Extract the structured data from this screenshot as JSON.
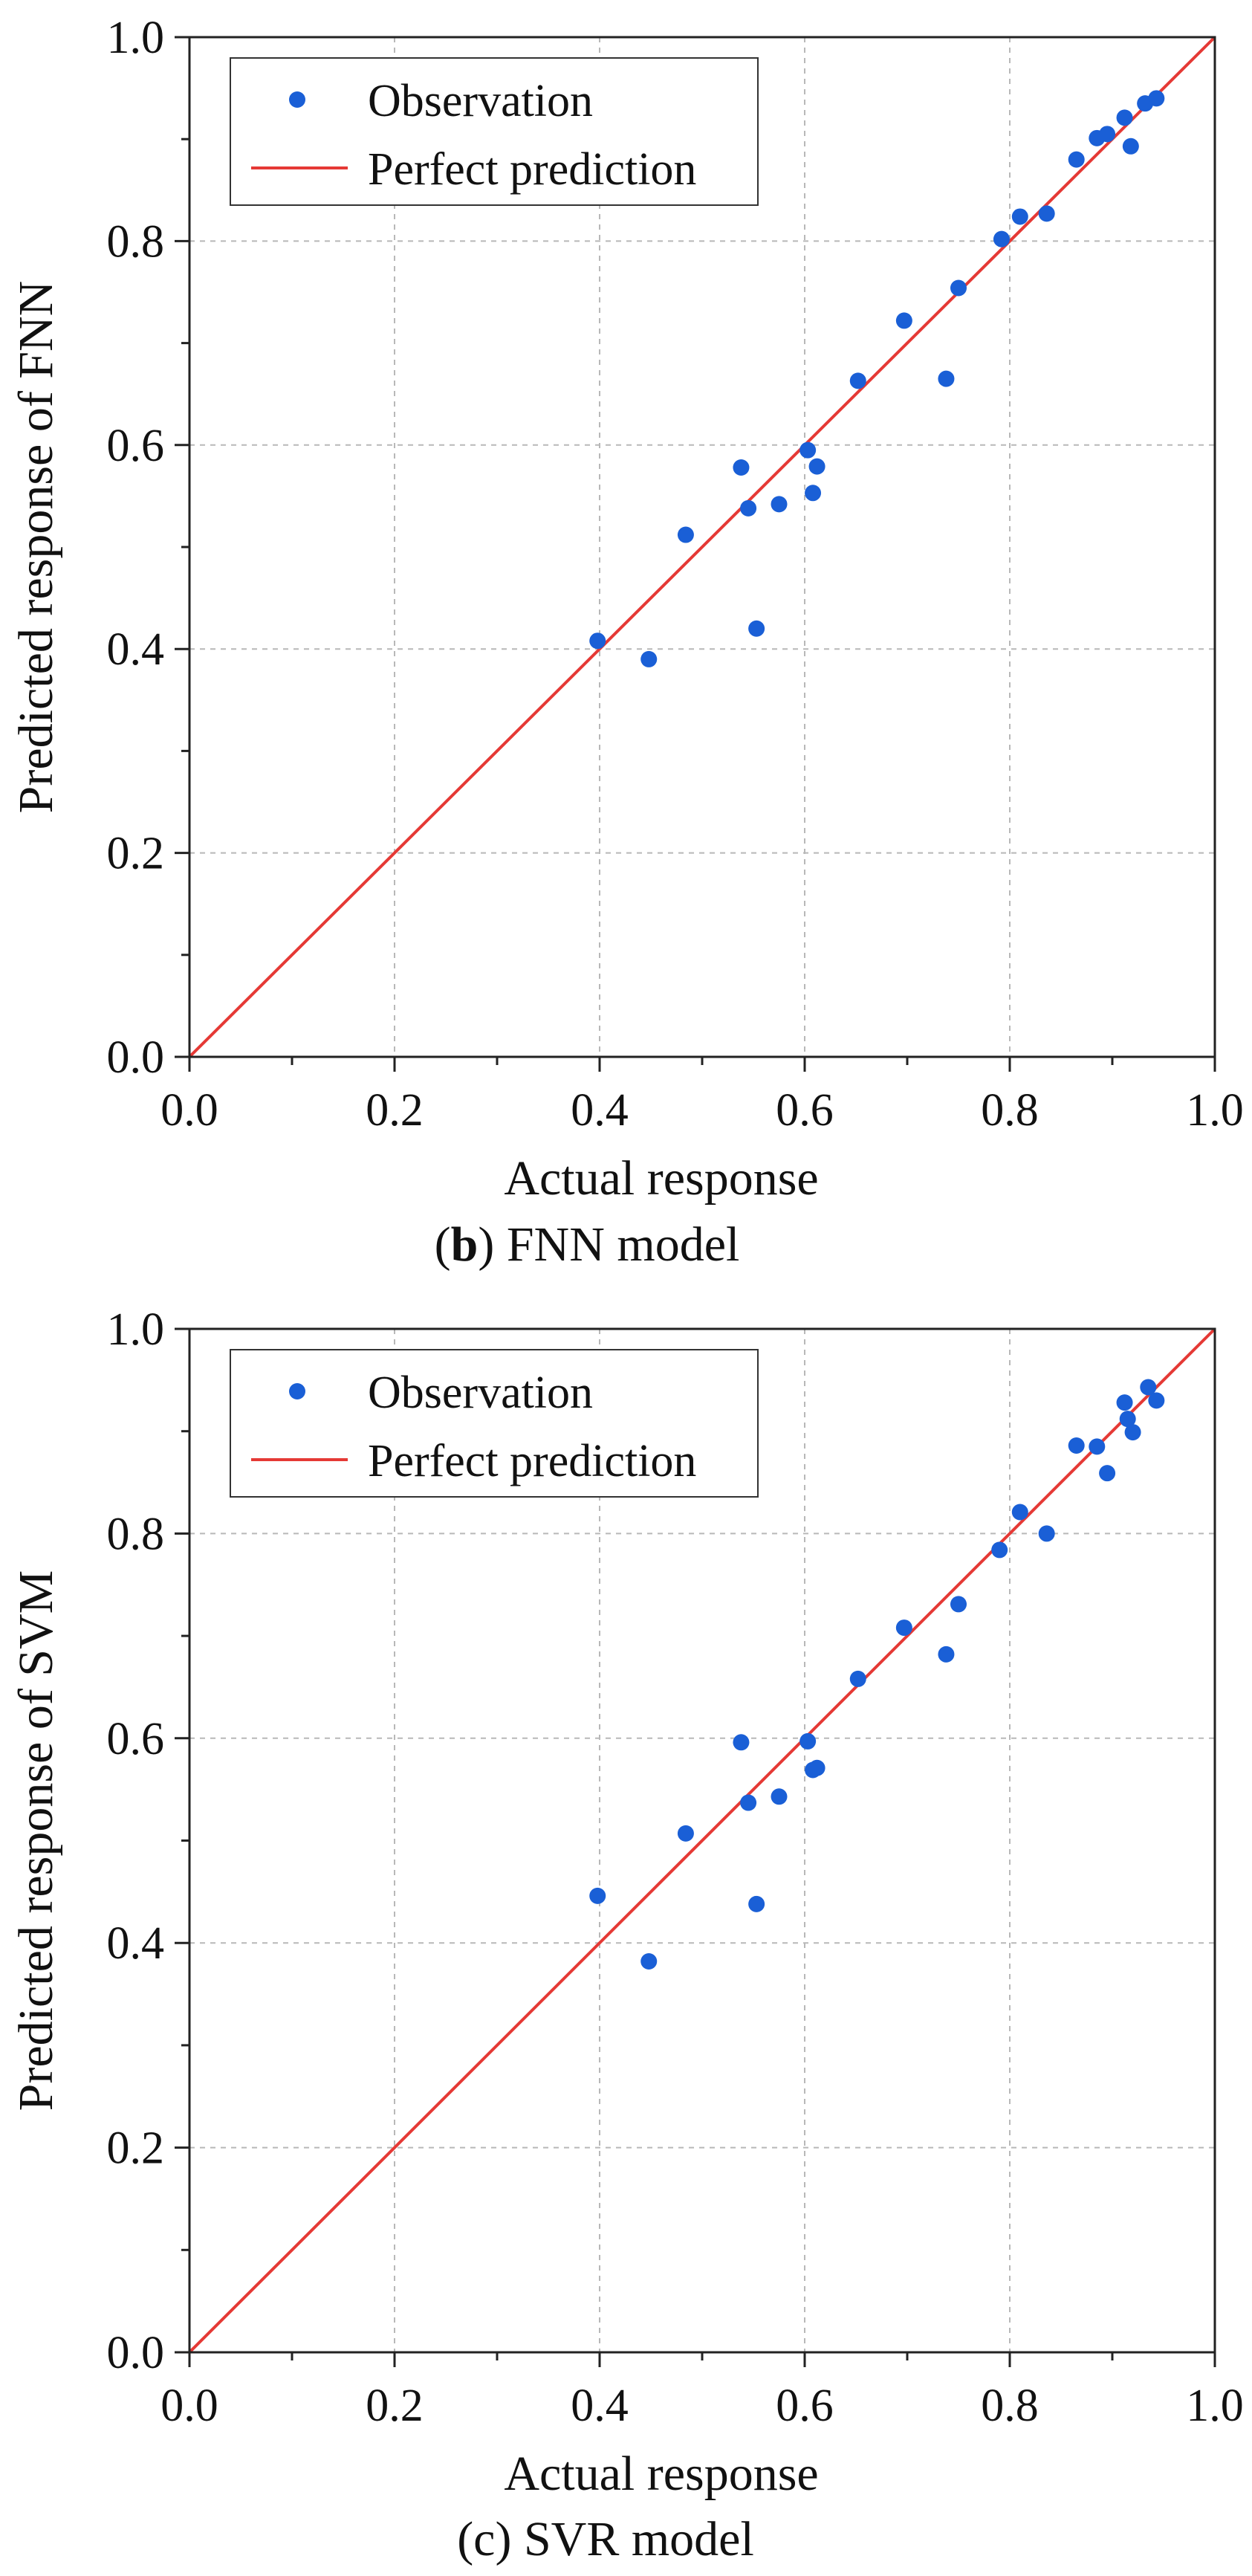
{
  "colors": {
    "observation": "#1a5fd6",
    "perfect_line": "#e53935",
    "grid": "#b8b8b8",
    "axis": "#222222",
    "text": "#111111"
  },
  "chart_data": [
    {
      "type": "scatter",
      "id": "fnn",
      "title": "",
      "caption": {
        "open": "(",
        "letter": "b",
        "close": ") FNN model"
      },
      "xlabel": "Actual response",
      "ylabel": "Predicted response of FNN",
      "xlim": [
        0,
        1
      ],
      "ylim": [
        0,
        1
      ],
      "xticks": [
        "0.0",
        "0.2",
        "0.4",
        "0.6",
        "0.8",
        "1.0"
      ],
      "yticks": [
        "0.0",
        "0.2",
        "0.4",
        "0.6",
        "0.8",
        "1.0"
      ],
      "grid": true,
      "legend_position": "top-left",
      "legend": [
        "Observation",
        "Perfect prediction"
      ],
      "series": [
        {
          "name": "Observation",
          "x": [
            0.398,
            0.448,
            0.484,
            0.538,
            0.545,
            0.553,
            0.575,
            0.603,
            0.608,
            0.612,
            0.652,
            0.697,
            0.738,
            0.75,
            0.792,
            0.81,
            0.836,
            0.865,
            0.885,
            0.895,
            0.912,
            0.918,
            0.932,
            0.943
          ],
          "y": [
            0.408,
            0.39,
            0.512,
            0.578,
            0.538,
            0.42,
            0.542,
            0.595,
            0.553,
            0.579,
            0.663,
            0.722,
            0.665,
            0.754,
            0.802,
            0.824,
            0.827,
            0.88,
            0.901,
            0.905,
            0.921,
            0.893,
            0.935,
            0.94
          ]
        },
        {
          "name": "Perfect prediction",
          "x": [
            0,
            1
          ],
          "y": [
            0,
            1
          ]
        }
      ]
    },
    {
      "type": "scatter",
      "id": "svr",
      "title": "",
      "caption": {
        "open": "(",
        "letter": "c",
        "close": ") SVR model"
      },
      "xlabel": "Actual response",
      "ylabel": "Predicted response of SVM",
      "xlim": [
        0,
        1
      ],
      "ylim": [
        0,
        1
      ],
      "xticks": [
        "0.0",
        "0.2",
        "0.4",
        "0.6",
        "0.8",
        "1.0"
      ],
      "yticks": [
        "0.0",
        "0.2",
        "0.4",
        "0.6",
        "0.8",
        "1.0"
      ],
      "grid": true,
      "legend_position": "top-left",
      "legend": [
        "Observation",
        "Perfect prediction"
      ],
      "series": [
        {
          "name": "Observation",
          "x": [
            0.398,
            0.448,
            0.484,
            0.538,
            0.545,
            0.553,
            0.575,
            0.603,
            0.608,
            0.612,
            0.652,
            0.697,
            0.738,
            0.75,
            0.79,
            0.81,
            0.836,
            0.865,
            0.885,
            0.895,
            0.912,
            0.915,
            0.92,
            0.935,
            0.943
          ],
          "y": [
            0.446,
            0.382,
            0.507,
            0.596,
            0.537,
            0.438,
            0.543,
            0.597,
            0.569,
            0.571,
            0.658,
            0.708,
            0.682,
            0.731,
            0.784,
            0.821,
            0.8,
            0.886,
            0.885,
            0.859,
            0.928,
            0.912,
            0.899,
            0.943,
            0.93
          ]
        },
        {
          "name": "Perfect prediction",
          "x": [
            0,
            1
          ],
          "y": [
            0,
            1
          ]
        }
      ]
    }
  ]
}
